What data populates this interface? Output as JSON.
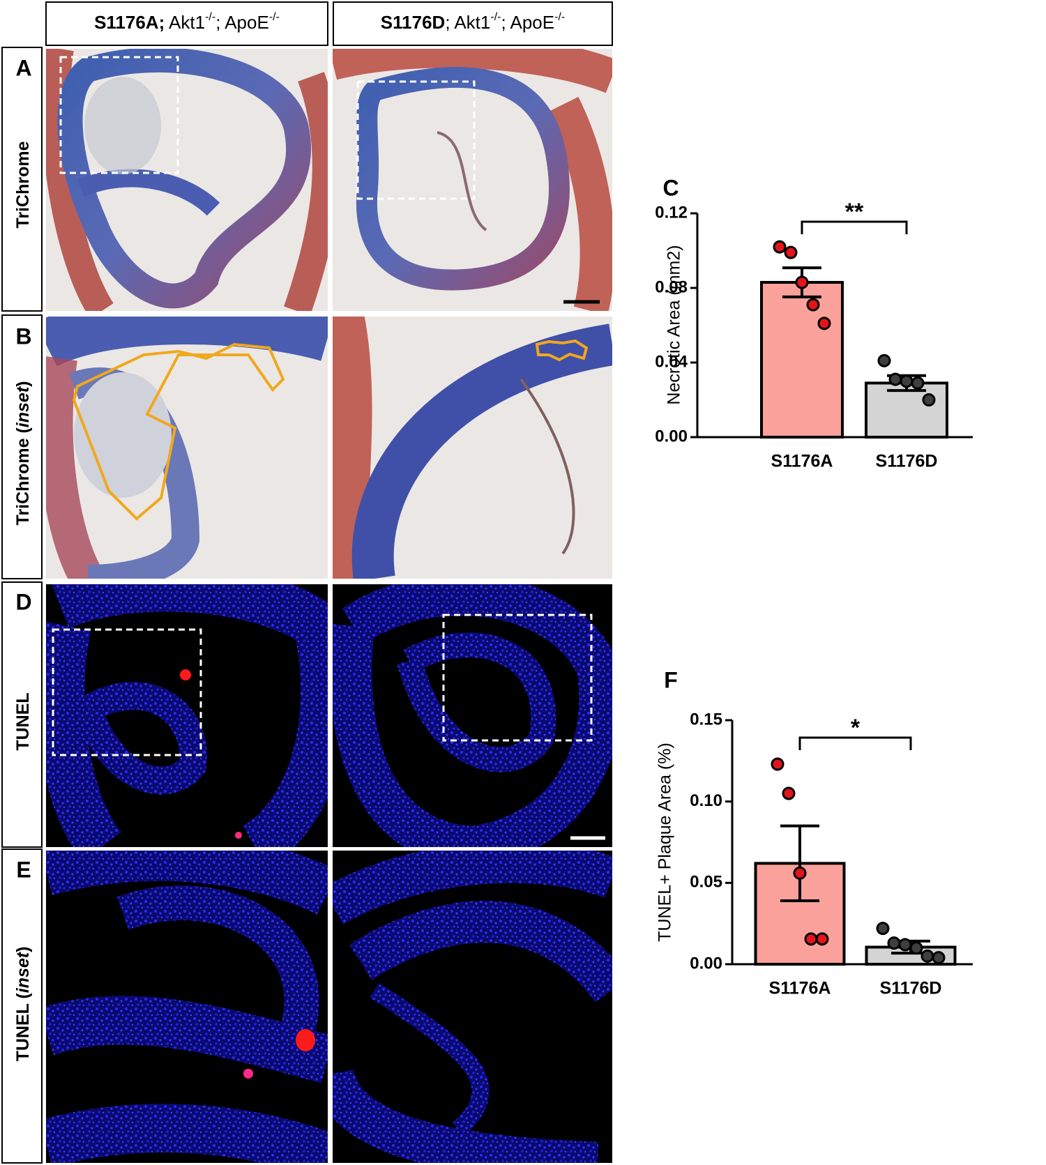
{
  "columns": [
    {
      "parts": [
        "S1176A;",
        " Akt1",
        "-/-",
        "; ApoE",
        "-/-"
      ]
    },
    {
      "parts": [
        "S1176D",
        "; Akt1",
        "-/-",
        "; ApoE",
        "-/-"
      ]
    }
  ],
  "rows": [
    {
      "letter": "A",
      "label": [
        "TriChrome"
      ]
    },
    {
      "letter": "B",
      "label": [
        "TriChrome (",
        "inset",
        ")"
      ]
    },
    {
      "letter": "D",
      "label": [
        "TUNEL"
      ]
    },
    {
      "letter": "E",
      "label": [
        "TUNEL (",
        "inset",
        ")"
      ]
    }
  ],
  "chart_data": [
    {
      "type": "bar",
      "panel": "C",
      "ylabel": "Necrotic Area (mm2)",
      "categories": [
        "S1176A",
        "S1176D"
      ],
      "values": [
        0.083,
        0.029
      ],
      "errors": [
        0.0078,
        0.004
      ],
      "points": [
        [
          0.102,
          0.099,
          0.083,
          0.071,
          0.061
        ],
        [
          0.041,
          0.031,
          0.03,
          0.029,
          0.02
        ]
      ],
      "colors": [
        "#f9a19a",
        "#d4d4d4"
      ],
      "point_colors": [
        "#e3151b",
        "#3f3f3f"
      ],
      "ylim": [
        0,
        0.12
      ],
      "yticks": [
        {
          "value": 0,
          "label": "0.00"
        },
        {
          "value": 0.04,
          "label": "0.04"
        },
        {
          "value": 0.08,
          "label": "0.08"
        },
        {
          "value": 0.12,
          "label": "0.12"
        }
      ],
      "annotation": "**"
    },
    {
      "type": "bar",
      "panel": "F",
      "ylabel": "TUNEL+ Plaque Area (%)",
      "categories": [
        "S1176A",
        "S1176D"
      ],
      "values": [
        0.062,
        0.0105
      ],
      "errors": [
        0.023,
        0.0037
      ],
      "points": [
        [
          0.123,
          0.105,
          0.056,
          0.0155,
          0.0155
        ],
        [
          0.022,
          0.013,
          0.012,
          0.01,
          0.005,
          0.004
        ]
      ],
      "colors": [
        "#f9a19a",
        "#d4d4d4"
      ],
      "point_colors": [
        "#e3151b",
        "#3f3f3f"
      ],
      "ylim": [
        0,
        0.15
      ],
      "yticks": [
        {
          "value": 0,
          "label": "0.00"
        },
        {
          "value": 0.05,
          "label": "0.05"
        },
        {
          "value": 0.1,
          "label": "0.10"
        },
        {
          "value": 0.15,
          "label": "0.15"
        }
      ],
      "annotation": "*"
    }
  ]
}
